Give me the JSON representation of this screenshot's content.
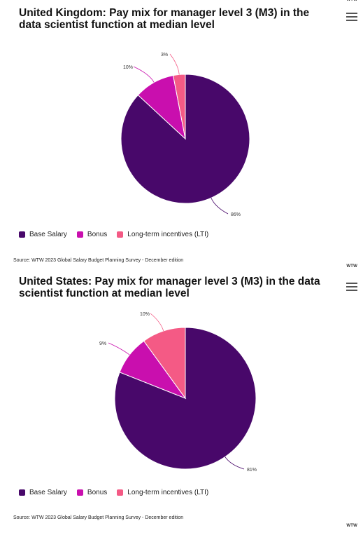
{
  "colors": {
    "base": "#48086a",
    "bonus": "#c90fae",
    "lti": "#f45a85",
    "leader": "#9b3c8d"
  },
  "credit": "WTW",
  "source": "Source: WTW 2023 Global Salary Budget Planning Survey - December edition",
  "chart_data": [
    {
      "type": "pie",
      "title": "United Kingdom: Pay mix for manager level 3 (M3) in the data scientist function at median level",
      "slices": [
        {
          "name": "Base Salary",
          "value": 86,
          "label": "86%"
        },
        {
          "name": "Bonus",
          "value": 10,
          "label": "10%"
        },
        {
          "name": "Long-term incentives (LTI)",
          "value": 3,
          "label": "3%"
        }
      ],
      "legend": {
        "placement": "bottom-left",
        "items": [
          "Base Salary",
          "Bonus",
          "Long-term incentives (LTI)"
        ]
      }
    },
    {
      "type": "pie",
      "title": "United States: Pay mix for manager level 3 (M3) in the data scientist function at median level",
      "slices": [
        {
          "name": "Base Salary",
          "value": 81,
          "label": "81%"
        },
        {
          "name": "Bonus",
          "value": 9,
          "label": "9%"
        },
        {
          "name": "Long-term incentives (LTI)",
          "value": 10,
          "label": "10%"
        }
      ],
      "legend": {
        "placement": "bottom-left",
        "items": [
          "Base Salary",
          "Bonus",
          "Long-term incentives (LTI)"
        ]
      }
    }
  ]
}
